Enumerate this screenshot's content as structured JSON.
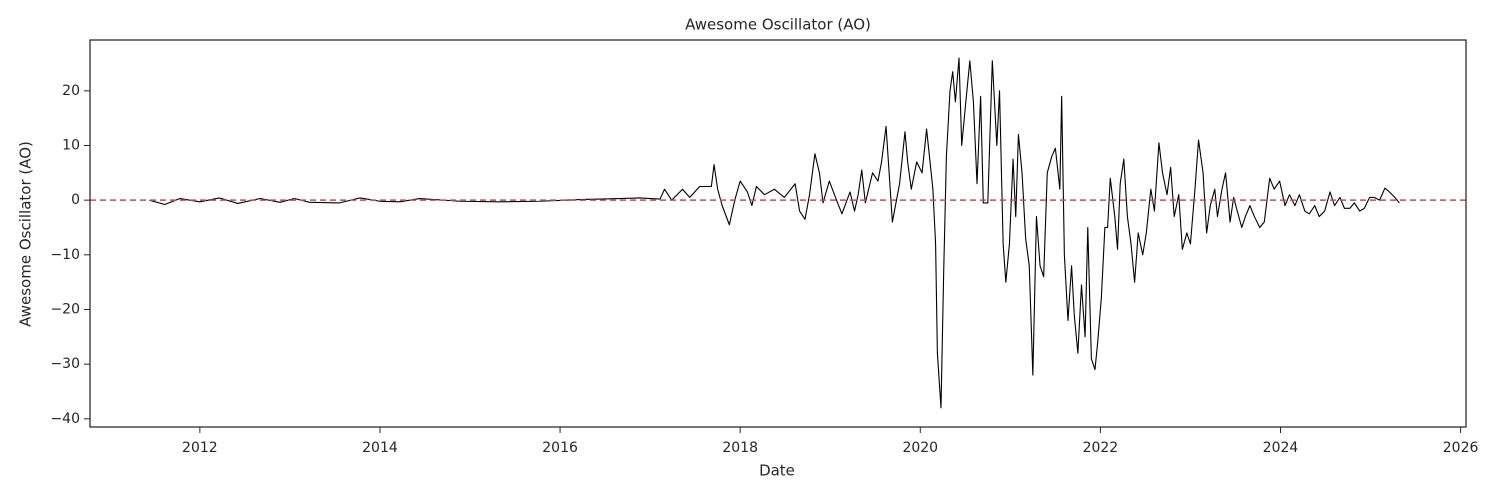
{
  "chart_data": {
    "type": "line",
    "title": "Awesome Oscillator (AO)",
    "x_label": "Date",
    "y_label": "Awesome Oscillator (AO)",
    "xlim": [
      2010.78,
      2026.06
    ],
    "xticks": [
      2012,
      2014,
      2016,
      2018,
      2020,
      2022,
      2024,
      2026
    ],
    "ylim": [
      -41.5,
      29.3
    ],
    "yticks": [
      {
        "value": -40,
        "label": "−40"
      },
      {
        "value": -30,
        "label": "−30"
      },
      {
        "value": -20,
        "label": "−20"
      },
      {
        "value": -10,
        "label": "−10"
      },
      0,
      10,
      20
    ],
    "grid": false,
    "reference_line": {
      "value": 0,
      "color": "#c44e52"
    },
    "x": [
      2011.44,
      2011.61,
      2011.78,
      2012.0,
      2012.22,
      2012.42,
      2012.67,
      2012.89,
      2013.05,
      2013.22,
      2013.55,
      2013.78,
      2014.0,
      2014.22,
      2014.44,
      2014.89,
      2015.33,
      2015.77,
      2016.22,
      2016.66,
      2016.88,
      2017.11,
      2017.16,
      2017.24,
      2017.36,
      2017.44,
      2017.55,
      2017.68,
      2017.71,
      2017.75,
      2017.8,
      2017.88,
      2017.94,
      2018.0,
      2018.08,
      2018.13,
      2018.18,
      2018.27,
      2018.38,
      2018.49,
      2018.61,
      2018.66,
      2018.72,
      2018.77,
      2018.83,
      2018.88,
      2018.92,
      2018.99,
      2019.07,
      2019.13,
      2019.22,
      2019.27,
      2019.31,
      2019.35,
      2019.39,
      2019.47,
      2019.53,
      2019.57,
      2019.62,
      2019.69,
      2019.77,
      2019.83,
      2019.86,
      2019.9,
      2019.96,
      2020.02,
      2020.07,
      2020.14,
      2020.17,
      2020.19,
      2020.23,
      2020.26,
      2020.29,
      2020.33,
      2020.36,
      2020.39,
      2020.43,
      2020.46,
      2020.5,
      2020.55,
      2020.59,
      2020.63,
      2020.67,
      2020.7,
      2020.75,
      2020.8,
      2020.85,
      2020.88,
      2020.92,
      2020.95,
      2020.99,
      2021.03,
      2021.06,
      2021.09,
      2021.13,
      2021.17,
      2021.21,
      2021.25,
      2021.29,
      2021.33,
      2021.37,
      2021.41,
      2021.46,
      2021.5,
      2021.55,
      2021.57,
      2021.6,
      2021.64,
      2021.68,
      2021.71,
      2021.75,
      2021.79,
      2021.83,
      2021.86,
      2021.9,
      2021.94,
      2021.97,
      2022.01,
      2022.05,
      2022.08,
      2022.11,
      2022.16,
      2022.19,
      2022.22,
      2022.26,
      2022.3,
      2022.34,
      2022.38,
      2022.42,
      2022.47,
      2022.51,
      2022.56,
      2022.6,
      2022.65,
      2022.69,
      2022.74,
      2022.78,
      2022.82,
      2022.87,
      2022.91,
      2022.96,
      2023.0,
      2023.05,
      2023.09,
      2023.14,
      2023.18,
      2023.22,
      2023.27,
      2023.3,
      2023.35,
      2023.39,
      2023.44,
      2023.48,
      2023.52,
      2023.57,
      2023.61,
      2023.66,
      2023.71,
      2023.77,
      2023.82,
      2023.88,
      2023.93,
      2023.99,
      2024.05,
      2024.1,
      2024.16,
      2024.21,
      2024.27,
      2024.32,
      2024.38,
      2024.43,
      2024.49,
      2024.55,
      2024.6,
      2024.66,
      2024.71,
      2024.77,
      2024.82,
      2024.88,
      2024.93,
      2024.99,
      2025.04,
      2025.1,
      2025.16,
      2025.21,
      2025.27,
      2025.32
    ],
    "series": [
      {
        "name": "AO",
        "color": "#000000",
        "values": [
          0,
          -0.8,
          0.3,
          -0.3,
          0.4,
          -0.6,
          0.3,
          -0.4,
          0.3,
          -0.4,
          -0.5,
          0.4,
          -0.2,
          -0.3,
          0.3,
          -0.2,
          -0.3,
          -0.2,
          0.1,
          0.3,
          0.4,
          0.2,
          2,
          0,
          2,
          0.5,
          2.5,
          2.5,
          6.5,
          2,
          -1,
          -4.5,
          0,
          3.5,
          1.5,
          -1,
          2.5,
          1,
          2,
          0.5,
          3,
          -2,
          -3.5,
          1,
          8.5,
          5,
          -0.5,
          3.5,
          0,
          -2.5,
          1.5,
          -2,
          1,
          5.5,
          -0.5,
          5,
          3.5,
          7,
          13.5,
          -4,
          3,
          12.5,
          7,
          2,
          7,
          5,
          13,
          2,
          -8,
          -28,
          -38,
          -13,
          8,
          20,
          23.5,
          18,
          26,
          10,
          17,
          25.5,
          18,
          3,
          19,
          -0.5,
          -0.5,
          25.5,
          10,
          20,
          -8,
          -15,
          -8,
          7.5,
          -3,
          12,
          5,
          -7,
          -12,
          -32,
          -3,
          -12,
          -14,
          5,
          8,
          9.5,
          2,
          19,
          -10,
          -22,
          -12,
          -21,
          -28,
          -15.5,
          -25,
          -5,
          -29,
          -31,
          -26,
          -18,
          -5,
          -5,
          4,
          -3,
          -9,
          3,
          7.5,
          -3,
          -8,
          -15,
          -6,
          -10,
          -6,
          2,
          -2,
          10.5,
          5,
          1,
          6,
          -3,
          1,
          -9,
          -6,
          -8,
          2,
          11,
          5,
          -6,
          -1,
          2,
          -3,
          2,
          5,
          -4,
          0.5,
          -2,
          -5,
          -3,
          -1,
          -3,
          -5,
          -4,
          4,
          2,
          3.5,
          -1,
          1,
          -1,
          1,
          -2,
          -2.5,
          -1,
          -3,
          -2,
          1.5,
          -1,
          0.5,
          -1.5,
          -1.5,
          -0.5,
          -2,
          -1.5,
          0.5,
          0.5,
          0,
          2.2,
          1.5,
          0.5,
          -0.5
        ]
      }
    ]
  }
}
